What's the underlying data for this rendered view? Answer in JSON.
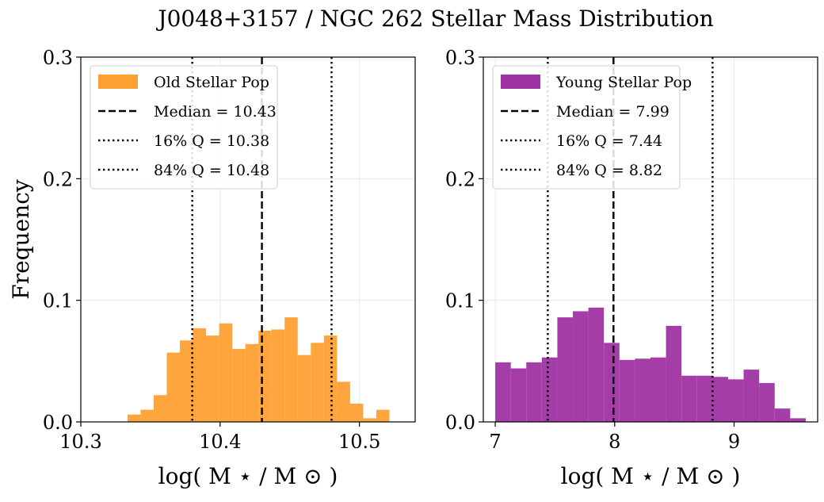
{
  "title": "J0048+3157 / NGC 262 Stellar Mass Distribution",
  "chart_data": [
    {
      "type": "bar",
      "panel": "left",
      "xlabel": "log( M ⋆ / M ⊙ )",
      "ylabel": "Frequency",
      "xlim": [
        10.3,
        10.54
      ],
      "ylim": [
        0.0,
        0.3
      ],
      "xticks": [
        "10.3",
        "10.4",
        "10.5"
      ],
      "yticks": [
        "0.0",
        "0.1",
        "0.2",
        "0.3"
      ],
      "grid": true,
      "legend_position": "top-left",
      "series_color": "#ffa033",
      "bins": [
        {
          "x0": 10.3335,
          "x1": 10.3429,
          "value": 0.006
        },
        {
          "x0": 10.3429,
          "x1": 10.3523,
          "value": 0.01
        },
        {
          "x0": 10.3523,
          "x1": 10.3617,
          "value": 0.022
        },
        {
          "x0": 10.3617,
          "x1": 10.3711,
          "value": 0.057
        },
        {
          "x0": 10.3711,
          "x1": 10.3805,
          "value": 0.067
        },
        {
          "x0": 10.3805,
          "x1": 10.3899,
          "value": 0.077
        },
        {
          "x0": 10.3899,
          "x1": 10.3993,
          "value": 0.071
        },
        {
          "x0": 10.3993,
          "x1": 10.4087,
          "value": 0.081
        },
        {
          "x0": 10.4087,
          "x1": 10.4181,
          "value": 0.06
        },
        {
          "x0": 10.4181,
          "x1": 10.4275,
          "value": 0.064
        },
        {
          "x0": 10.4275,
          "x1": 10.4369,
          "value": 0.075
        },
        {
          "x0": 10.4369,
          "x1": 10.4463,
          "value": 0.076
        },
        {
          "x0": 10.4463,
          "x1": 10.4557,
          "value": 0.086
        },
        {
          "x0": 10.4557,
          "x1": 10.4651,
          "value": 0.055
        },
        {
          "x0": 10.4651,
          "x1": 10.4745,
          "value": 0.065
        },
        {
          "x0": 10.4745,
          "x1": 10.4839,
          "value": 0.071
        },
        {
          "x0": 10.4839,
          "x1": 10.4933,
          "value": 0.033
        },
        {
          "x0": 10.4933,
          "x1": 10.5027,
          "value": 0.015
        },
        {
          "x0": 10.5027,
          "x1": 10.5121,
          "value": 0.003
        },
        {
          "x0": 10.5121,
          "x1": 10.5215,
          "value": 0.01
        }
      ],
      "lines": [
        {
          "kind": "median",
          "x": 10.43,
          "style": "dashed"
        },
        {
          "kind": "q16",
          "x": 10.38,
          "style": "dotted"
        },
        {
          "kind": "q84",
          "x": 10.48,
          "style": "dotted"
        }
      ],
      "legend": [
        {
          "label": "Old Stellar Pop",
          "kind": "patch"
        },
        {
          "label": "Median = 10.43",
          "kind": "dashed"
        },
        {
          "label": "16% Q = 10.38",
          "kind": "dotted"
        },
        {
          "label": "84% Q = 10.48",
          "kind": "dotted"
        }
      ]
    },
    {
      "type": "bar",
      "panel": "right",
      "xlabel": "log( M ⋆ / M ⊙ )",
      "ylabel": "",
      "xlim": [
        6.9,
        9.7
      ],
      "ylim": [
        0.0,
        0.3
      ],
      "xticks": [
        "7",
        "8",
        "9"
      ],
      "yticks": [
        "0.0",
        "0.1",
        "0.2",
        "0.3"
      ],
      "grid": true,
      "legend_position": "top-left",
      "series_color": "#a033a3",
      "bins": [
        {
          "x0": 7.0,
          "x1": 7.13,
          "value": 0.049
        },
        {
          "x0": 7.13,
          "x1": 7.26,
          "value": 0.044
        },
        {
          "x0": 7.26,
          "x1": 7.39,
          "value": 0.049
        },
        {
          "x0": 7.39,
          "x1": 7.52,
          "value": 0.053
        },
        {
          "x0": 7.52,
          "x1": 7.65,
          "value": 0.086
        },
        {
          "x0": 7.65,
          "x1": 7.78,
          "value": 0.091
        },
        {
          "x0": 7.78,
          "x1": 7.91,
          "value": 0.094
        },
        {
          "x0": 7.91,
          "x1": 8.04,
          "value": 0.065
        },
        {
          "x0": 8.04,
          "x1": 8.17,
          "value": 0.051
        },
        {
          "x0": 8.17,
          "x1": 8.3,
          "value": 0.052
        },
        {
          "x0": 8.3,
          "x1": 8.43,
          "value": 0.053
        },
        {
          "x0": 8.43,
          "x1": 8.56,
          "value": 0.079
        },
        {
          "x0": 8.56,
          "x1": 8.69,
          "value": 0.038
        },
        {
          "x0": 8.69,
          "x1": 8.82,
          "value": 0.038
        },
        {
          "x0": 8.82,
          "x1": 8.95,
          "value": 0.037
        },
        {
          "x0": 8.95,
          "x1": 9.08,
          "value": 0.035
        },
        {
          "x0": 9.08,
          "x1": 9.21,
          "value": 0.043
        },
        {
          "x0": 9.21,
          "x1": 9.34,
          "value": 0.032
        },
        {
          "x0": 9.34,
          "x1": 9.47,
          "value": 0.011
        },
        {
          "x0": 9.47,
          "x1": 9.6,
          "value": 0.003
        }
      ],
      "lines": [
        {
          "kind": "median",
          "x": 7.99,
          "style": "dashed"
        },
        {
          "kind": "q16",
          "x": 7.44,
          "style": "dotted"
        },
        {
          "kind": "q84",
          "x": 8.82,
          "style": "dotted"
        }
      ],
      "legend": [
        {
          "label": "Young Stellar Pop",
          "kind": "patch"
        },
        {
          "label": "Median = 7.99",
          "kind": "dashed"
        },
        {
          "label": "16% Q = 7.44",
          "kind": "dotted"
        },
        {
          "label": "84% Q = 8.82",
          "kind": "dotted"
        }
      ]
    }
  ]
}
